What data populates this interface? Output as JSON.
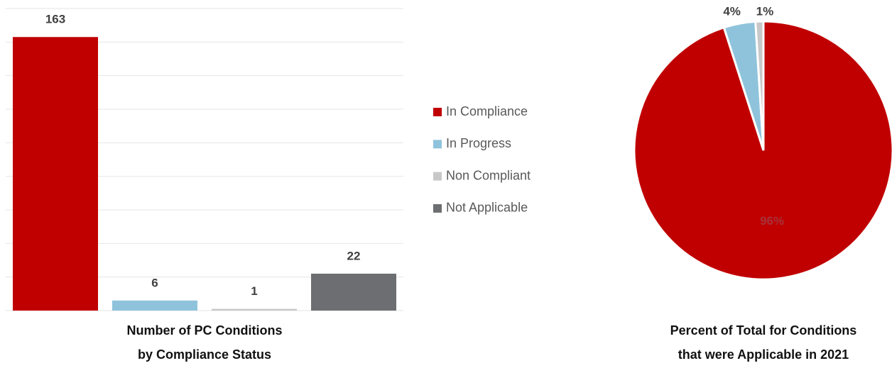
{
  "chart_data": [
    {
      "type": "bar",
      "title": [
        "Number of PC Conditions",
        "by Compliance Status"
      ],
      "categories": [
        "In Compliance",
        "In Progress",
        "Non Compliant",
        "Not Applicable"
      ],
      "values": [
        163,
        6,
        1,
        22
      ],
      "colors": [
        "#c00000",
        "#8fc3dc",
        "#c8c8c8",
        "#6d6e71"
      ],
      "ylim": [
        0,
        180
      ],
      "yticks": [
        0,
        20,
        40,
        60,
        80,
        100,
        120,
        140,
        160,
        180
      ],
      "grid": true,
      "legend": "right"
    },
    {
      "type": "pie",
      "title": [
        "Percent of Total for Conditions",
        "that were Applicable in 2021"
      ],
      "values": [
        96,
        4,
        1
      ],
      "value_labels": [
        "96%",
        "4%",
        "1%"
      ],
      "colors": [
        "#c00000",
        "#8fc3dc",
        "#c8c8c8"
      ]
    }
  ]
}
